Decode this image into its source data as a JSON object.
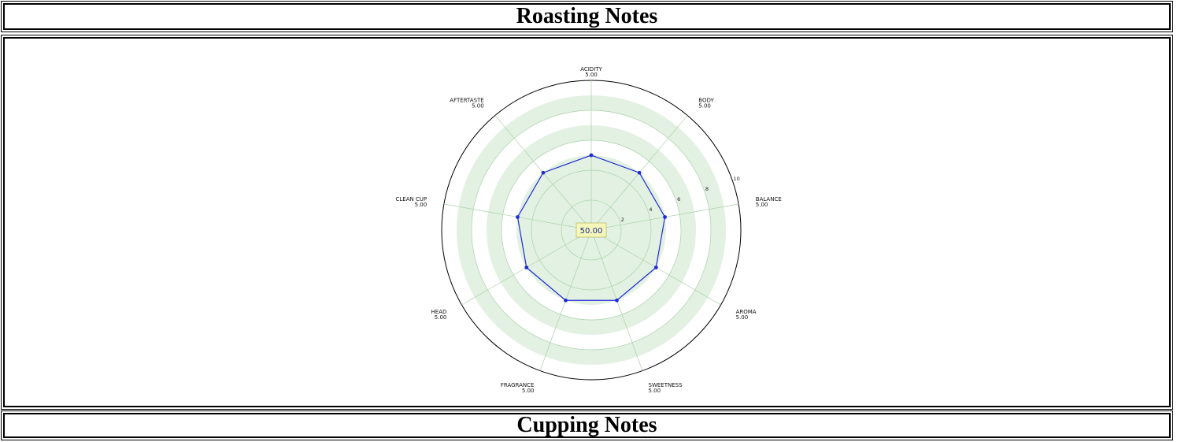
{
  "headers": {
    "roasting": "Roasting Notes",
    "cupping": "Cupping Notes"
  },
  "chart_data": {
    "type": "radar",
    "axes": [
      {
        "label": "ACIDITY",
        "score": "5.00"
      },
      {
        "label": "BODY",
        "score": "5.00"
      },
      {
        "label": "BALANCE",
        "score": "5.00"
      },
      {
        "label": "AROMA",
        "score": "5.00"
      },
      {
        "label": "SWEETNESS",
        "score": "5.00"
      },
      {
        "label": "FRAGRANCE",
        "score": "5.00"
      },
      {
        "label": "HEAD",
        "score": "5.00"
      },
      {
        "label": "CLEAN CUP",
        "score": "5.00"
      },
      {
        "label": "AFTERTASTE",
        "score": "5.00"
      }
    ],
    "values": [
      5,
      5,
      5,
      5,
      5,
      5,
      5,
      5,
      5
    ],
    "range": [
      0,
      10
    ],
    "ring_labels": [
      "2",
      "4",
      "6",
      "8",
      "10"
    ],
    "total": "50.00",
    "colors": {
      "series": "#1f2bd6",
      "band": "#e2f1e2",
      "grid": "#a9d2a9",
      "total_box": "#f4f7b8"
    }
  }
}
